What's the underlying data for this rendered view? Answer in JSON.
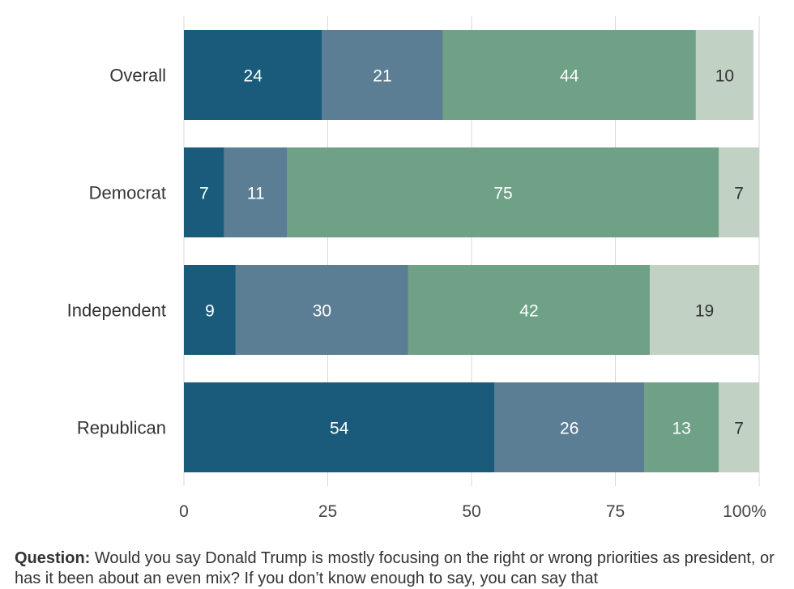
{
  "chart_data": {
    "type": "bar",
    "orientation": "horizontal",
    "stacked": true,
    "categories": [
      "Overall",
      "Democrat",
      "Independent",
      "Republican"
    ],
    "series": [
      {
        "values": [
          24,
          7,
          9,
          54
        ],
        "color": "#1a5b7b",
        "label_color": "#ffffff"
      },
      {
        "values": [
          21,
          11,
          30,
          26
        ],
        "color": "#5b7e94",
        "label_color": "#ffffff"
      },
      {
        "values": [
          44,
          75,
          42,
          13
        ],
        "color": "#6fa187",
        "label_color": "#ffffff"
      },
      {
        "values": [
          10,
          7,
          19,
          7
        ],
        "color": "#c1d1c4",
        "label_color": "#333333"
      }
    ],
    "xlim": [
      0,
      100
    ],
    "xticks": [
      0,
      25,
      50,
      75,
      100
    ],
    "xtick_labels": [
      "0",
      "25",
      "50",
      "75",
      "100%"
    ],
    "grid": true
  },
  "footnote": {
    "label": "Question:",
    "text": " Would you say Donald Trump is mostly focusing on the right or wrong priorities as president, or has it been about an even mix? If you don’t know enough to say, you can say that"
  }
}
